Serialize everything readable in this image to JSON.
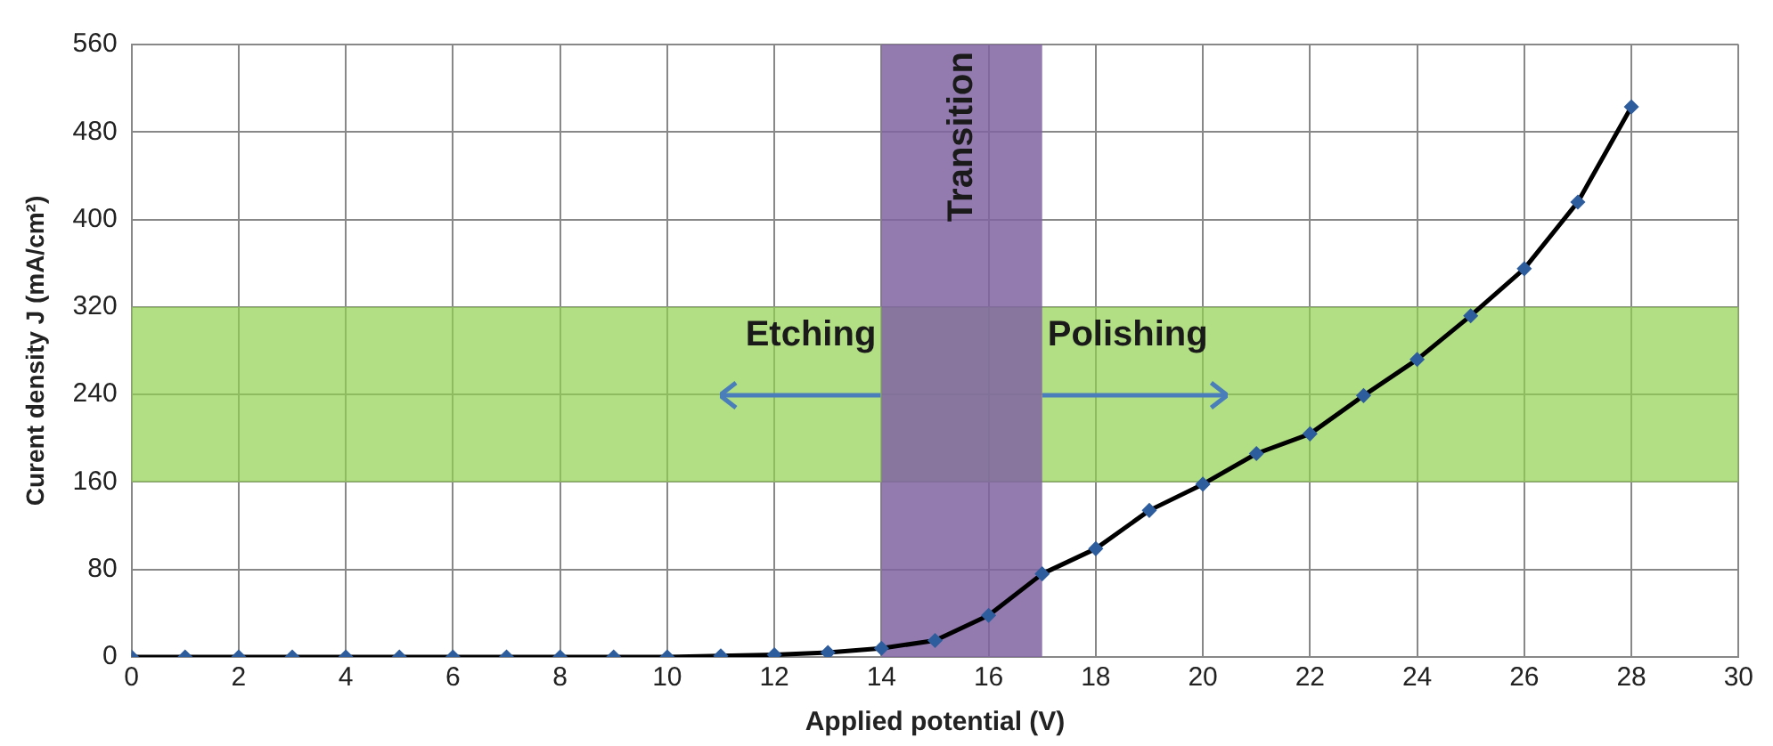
{
  "chart_data": {
    "type": "line",
    "xlabel": "Applied potential (V)",
    "ylabel": "Curent density J (mA/cm²)",
    "x": [
      0,
      1,
      2,
      3,
      4,
      5,
      6,
      7,
      8,
      9,
      10,
      11,
      12,
      13,
      14,
      15,
      16,
      17,
      18,
      19,
      20,
      21,
      22,
      23,
      24,
      25,
      26,
      27,
      28
    ],
    "series": [
      {
        "color": "#000000",
        "values": [
          0,
          0,
          0,
          0,
          0,
          0,
          0,
          0,
          0,
          0,
          0,
          1,
          2,
          4,
          8,
          15,
          38,
          76,
          99,
          134,
          158,
          186,
          204,
          239,
          272,
          312,
          355,
          416,
          503
        ]
      }
    ],
    "xlim": [
      0,
      30
    ],
    "xticks": [
      0,
      2,
      4,
      6,
      8,
      10,
      12,
      14,
      16,
      18,
      20,
      22,
      24,
      26,
      28,
      30
    ],
    "ylim": [
      0,
      560
    ],
    "yticks": [
      0,
      80,
      160,
      240,
      320,
      400,
      480,
      560
    ],
    "grid": true,
    "legend": false,
    "marker": "diamond",
    "line_style": "solid",
    "bands": [
      {
        "axis": "y",
        "from": 160,
        "to": 320,
        "color": "#92d050"
      },
      {
        "axis": "x",
        "from": 14,
        "to": 17,
        "label": "Transition",
        "color": "#8064a2"
      }
    ],
    "annotations": [
      "Etching",
      "Polishing"
    ]
  }
}
